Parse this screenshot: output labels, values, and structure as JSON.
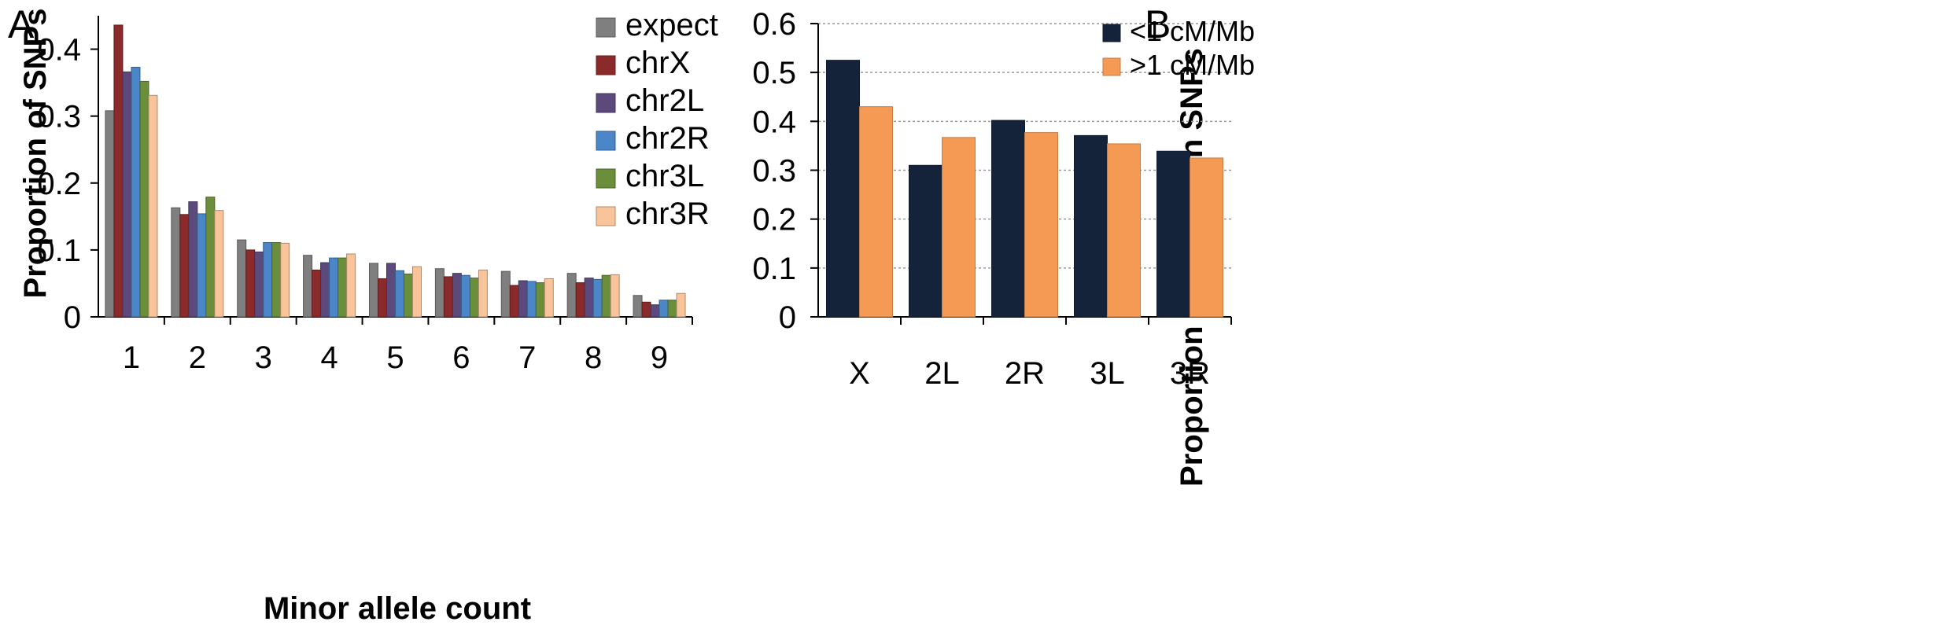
{
  "figure": {
    "panels": [
      "A",
      "B"
    ]
  },
  "chart_data": [
    {
      "type": "bar",
      "panel_label": "A",
      "title": "",
      "xlabel": "Minor allele count",
      "ylabel": "Proportion of SNPs",
      "categories": [
        "1",
        "2",
        "3",
        "4",
        "5",
        "6",
        "7",
        "8",
        "9"
      ],
      "ylim": [
        0,
        0.45
      ],
      "yticks": [
        0,
        0.1,
        0.2,
        0.3,
        0.4
      ],
      "ytick_labels": [
        "0",
        "0.1",
        "0.2",
        "0.3",
        "0.4"
      ],
      "grid": false,
      "legend": "top-right",
      "series": [
        {
          "name": "expect",
          "color": "#7f7f7f",
          "values": [
            0.308,
            0.163,
            0.115,
            0.092,
            0.08,
            0.072,
            0.068,
            0.065,
            0.032
          ]
        },
        {
          "name": "chrX",
          "color": "#8b2a2a",
          "values": [
            0.436,
            0.153,
            0.1,
            0.07,
            0.057,
            0.06,
            0.047,
            0.051,
            0.022
          ]
        },
        {
          "name": "chr2L",
          "color": "#5c4a7d",
          "values": [
            0.366,
            0.172,
            0.097,
            0.081,
            0.08,
            0.065,
            0.054,
            0.058,
            0.018
          ]
        },
        {
          "name": "chr2R",
          "color": "#4a86c8",
          "values": [
            0.373,
            0.154,
            0.111,
            0.088,
            0.069,
            0.062,
            0.053,
            0.056,
            0.025
          ]
        },
        {
          "name": "chr3L",
          "color": "#6b8e3a",
          "values": [
            0.352,
            0.179,
            0.111,
            0.088,
            0.064,
            0.058,
            0.051,
            0.062,
            0.025
          ]
        },
        {
          "name": "chr3R",
          "color": "#f9c49a",
          "values": [
            0.331,
            0.159,
            0.11,
            0.094,
            0.075,
            0.07,
            0.057,
            0.063,
            0.035
          ]
        }
      ]
    },
    {
      "type": "bar",
      "panel_label": "B",
      "title": "",
      "xlabel": "",
      "ylabel": "Proportion of singleton SNPs",
      "categories": [
        "X",
        "2L",
        "2R",
        "3L",
        "3R"
      ],
      "ylim": [
        0,
        0.6
      ],
      "yticks": [
        0,
        0.1,
        0.2,
        0.3,
        0.4,
        0.5,
        0.6
      ],
      "ytick_labels": [
        "0",
        "0.1",
        "0.2",
        "0.3",
        "0.4",
        "0.5",
        "0.6"
      ],
      "grid": true,
      "legend": "top-right",
      "series": [
        {
          "name": "<1 cM/Mb",
          "color": "#14223a",
          "values": [
            0.525,
            0.31,
            0.402,
            0.371,
            0.339
          ]
        },
        {
          "name": ">1 cM/Mb",
          "color": "#f59a55",
          "values": [
            0.43,
            0.367,
            0.377,
            0.354,
            0.325
          ]
        }
      ]
    }
  ]
}
